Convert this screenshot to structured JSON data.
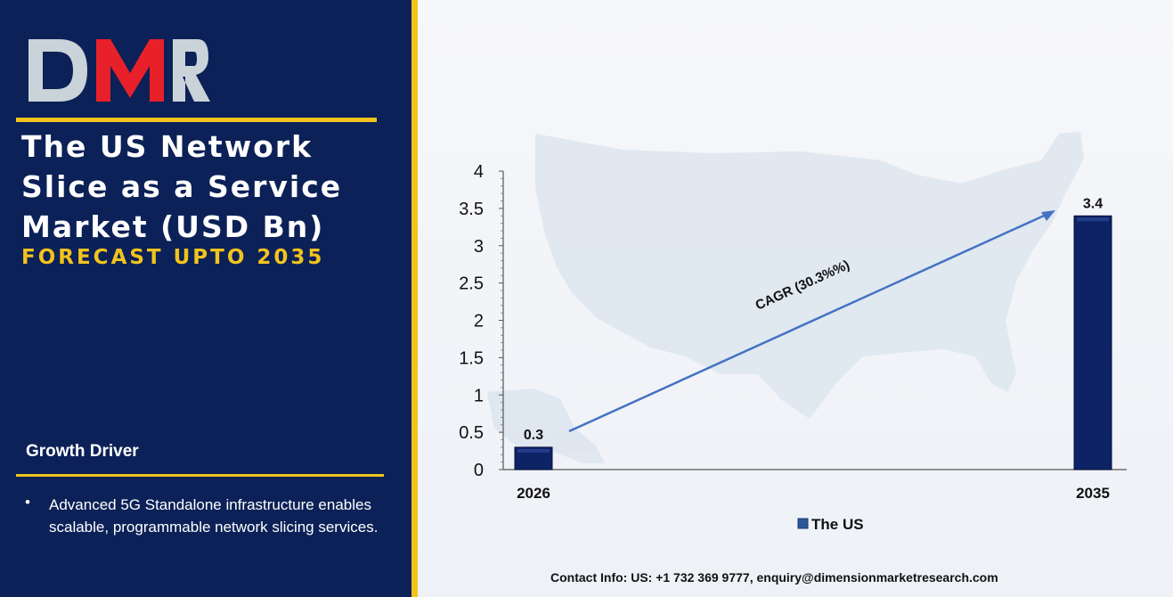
{
  "brand": {
    "logo_text": "DMR"
  },
  "header": {
    "title": "The US Network Slice as a Service Market (USD Bn)",
    "subtitle": "FORECAST UPTO 2035"
  },
  "growth_driver": {
    "heading": "Growth Driver",
    "bullet": "•",
    "text": "Advanced 5G Standalone infrastructure enables scalable, programmable network slicing services."
  },
  "footer": {
    "contact": "Contact Info: US: +1 732 369 9777, enquiry@dimensionmarketresearch.com"
  },
  "colors": {
    "panel": "#0c2157",
    "accent": "#f2c31d",
    "bar": "#0d2366",
    "arrow": "#4472c4",
    "logo_red": "#e8202a",
    "logo_grey": "#c9d3d9"
  },
  "chart_data": {
    "type": "bar",
    "categories": [
      "2026",
      "2035"
    ],
    "series": [
      {
        "name": "The US",
        "values": [
          0.3,
          3.4
        ]
      }
    ],
    "data_labels": [
      "0.3",
      "3.4"
    ],
    "yticks": [
      "0",
      "0.5",
      "1",
      "1.5",
      "2",
      "2.5",
      "3",
      "3.5",
      "4"
    ],
    "ylim": [
      0,
      4
    ],
    "annotation": "CAGR (30.3%%)",
    "legend": "bottom",
    "grid": false
  }
}
